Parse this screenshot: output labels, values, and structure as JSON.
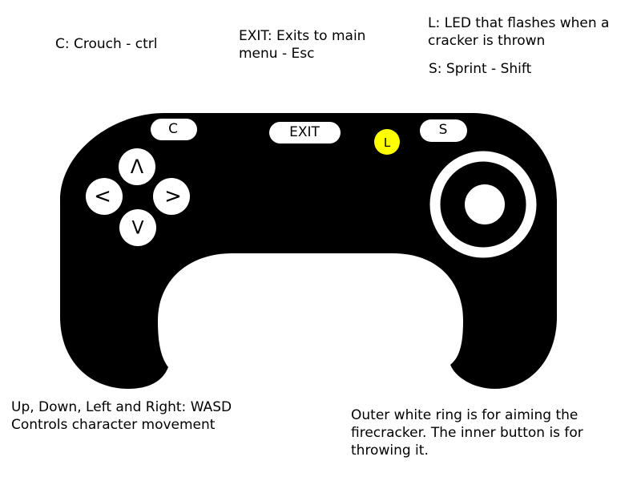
{
  "notes": {
    "crouch": "C: Crouch - ctrl",
    "exit": [
      "EXIT: Exits to main",
      "menu - Esc"
    ],
    "led": [
      "L: LED that flashes when a",
      "cracker is thrown"
    ],
    "sprint": "S: Sprint - Shift",
    "dpad": [
      "Up, Down, Left and Right: WASD",
      "Controls character movement"
    ],
    "aim": [
      "Outer white ring is for aiming the",
      "firecracker. The inner button is for",
      "throwing it."
    ]
  },
  "controller": {
    "crouch_button": "C",
    "exit_button": "EXIT",
    "led": "L",
    "sprint_button": "S",
    "dpad": {
      "up": "Λ",
      "left": "<",
      "right": ">",
      "down": "V"
    }
  },
  "colors": {
    "body": "#000000",
    "buttons": "#ffffff",
    "led": "#ffff00"
  }
}
